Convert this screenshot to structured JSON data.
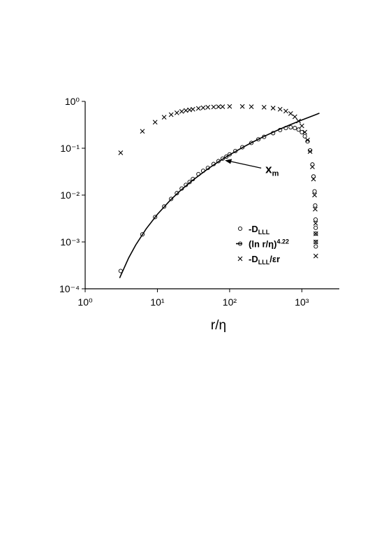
{
  "chart_data": {
    "type": "scatter",
    "xscale": "log",
    "yscale": "log",
    "x_label": "r/η",
    "xlim": [
      1,
      3300
    ],
    "ylim": [
      0.0001,
      1
    ],
    "xticks": [
      {
        "value": 1,
        "label": "10⁰"
      },
      {
        "value": 10,
        "label": "10¹"
      },
      {
        "value": 100,
        "label": "10²"
      },
      {
        "value": 1000,
        "label": "10³"
      }
    ],
    "yticks": [
      {
        "value": 0.0001,
        "label": "10⁻⁴"
      },
      {
        "value": 0.001,
        "label": "10⁻³"
      },
      {
        "value": 0.01,
        "label": "10⁻²"
      },
      {
        "value": 0.1,
        "label": "10⁻¹"
      },
      {
        "value": 1,
        "label": "10⁰"
      }
    ],
    "annotation": {
      "text": [
        "x",
        "m"
      ],
      "x": 86,
      "y": 0.055
    },
    "series": [
      {
        "name": [
          "-D",
          "LLL"
        ],
        "name_script": "sub",
        "mark": "circle",
        "color": "#000000",
        "x": [
          3.1,
          6.2,
          9.3,
          12.4,
          15.5,
          18.6,
          21.7,
          24.8,
          27.9,
          31,
          37,
          43,
          50,
          60,
          70,
          80,
          90,
          100,
          120,
          150,
          200,
          250,
          300,
          400,
          500,
          600,
          700,
          800,
          900,
          1000,
          1100,
          1200,
          1300,
          1400,
          1450,
          1500,
          1530,
          1550,
          1555,
          1560,
          1560,
          1560
        ],
        "values": [
          0.00024,
          0.00145,
          0.0034,
          0.0057,
          0.0083,
          0.011,
          0.0138,
          0.0165,
          0.019,
          0.022,
          0.028,
          0.033,
          0.038,
          0.046,
          0.053,
          0.06,
          0.066,
          0.074,
          0.087,
          0.105,
          0.13,
          0.155,
          0.175,
          0.21,
          0.245,
          0.27,
          0.28,
          0.27,
          0.25,
          0.22,
          0.18,
          0.14,
          0.09,
          0.045,
          0.025,
          0.012,
          0.006,
          0.003,
          0.002,
          0.0015,
          0.001,
          0.0008
        ]
      },
      {
        "name": [
          "(ln r/η)",
          "4.22"
        ],
        "name_script": "sup",
        "mark": "line",
        "color": "#000000",
        "x": [
          3,
          4,
          5,
          7,
          10,
          15,
          20,
          30,
          50,
          70,
          100,
          150,
          200,
          300,
          500,
          700,
          1000,
          1500,
          1750
        ],
        "values": [
          0.00017,
          0.000456,
          0.000857,
          0.00191,
          0.00389,
          0.0077,
          0.0118,
          0.0201,
          0.0363,
          0.0515,
          0.0723,
          0.1034,
          0.131,
          0.179,
          0.257,
          0.32,
          0.401,
          0.51,
          0.56
        ]
      },
      {
        "name": [
          "-D",
          "LLL",
          "/εr"
        ],
        "name_script": "sub",
        "mark": "cross",
        "color": "#000000",
        "x": [
          3.1,
          6.2,
          9.3,
          12.4,
          15.5,
          18.6,
          21.7,
          24.8,
          27.9,
          31,
          37,
          43,
          50,
          60,
          70,
          80,
          100,
          150,
          200,
          300,
          400,
          500,
          600,
          700,
          800,
          900,
          1000,
          1100,
          1200,
          1300,
          1400,
          1450,
          1500,
          1530,
          1550,
          1560,
          1560,
          1560
        ],
        "values": [
          0.08,
          0.23,
          0.36,
          0.46,
          0.52,
          0.57,
          0.61,
          0.64,
          0.66,
          0.68,
          0.71,
          0.73,
          0.75,
          0.76,
          0.77,
          0.77,
          0.78,
          0.78,
          0.77,
          0.75,
          0.72,
          0.68,
          0.62,
          0.55,
          0.47,
          0.38,
          0.3,
          0.22,
          0.15,
          0.085,
          0.04,
          0.022,
          0.01,
          0.005,
          0.0025,
          0.0015,
          0.001,
          0.0005
        ]
      }
    ]
  }
}
